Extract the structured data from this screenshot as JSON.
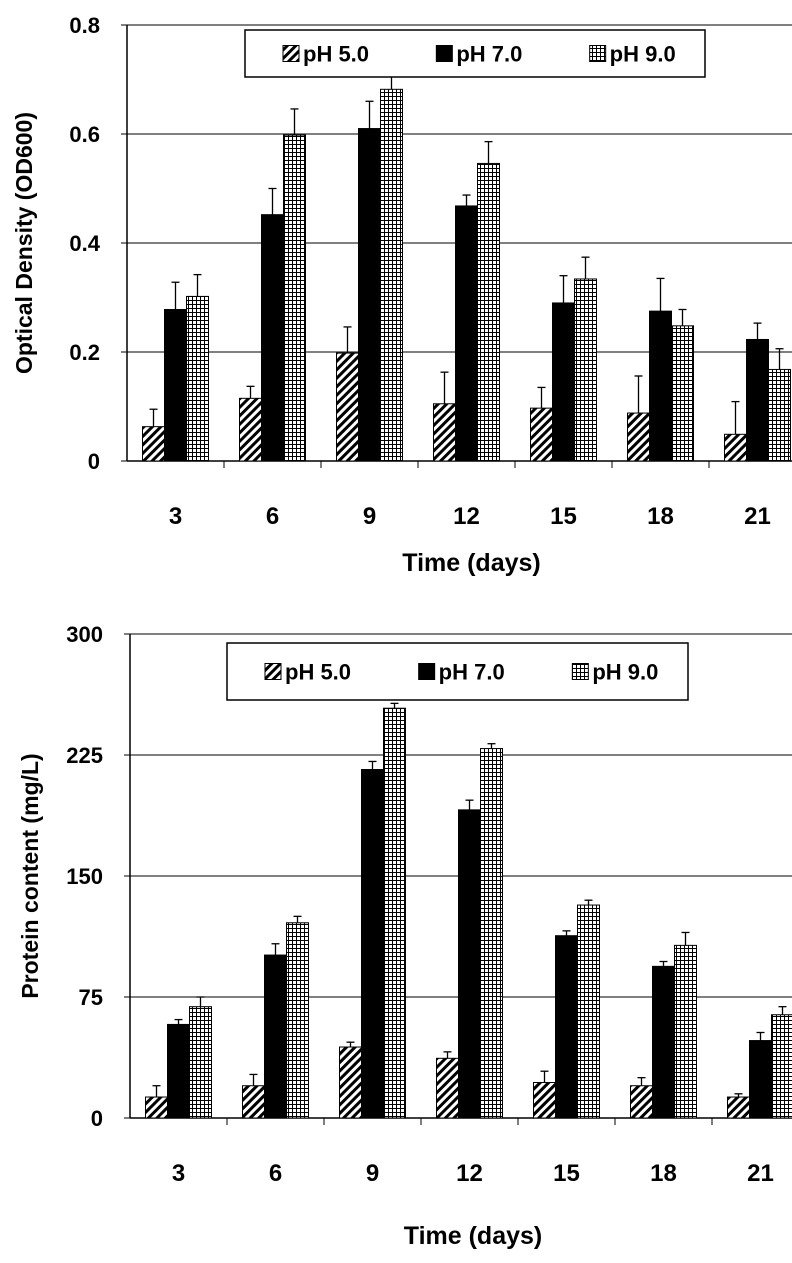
{
  "chart_data": [
    {
      "type": "bar",
      "title": "",
      "xlabel": "Time (days)",
      "ylabel": "Optical Density (OD600)",
      "ylim": [
        0,
        0.8
      ],
      "yticks": [
        "0",
        "0.2",
        "0.4",
        "0.6",
        "0.8"
      ],
      "categories": [
        "3",
        "6",
        "9",
        "12",
        "15",
        "18",
        "21"
      ],
      "grid": true,
      "legend_position": "top",
      "series": [
        {
          "name": "pH 5.0",
          "pattern": "diagonal-hatch",
          "values": [
            0.063,
            0.115,
            0.198,
            0.105,
            0.097,
            0.088,
            0.049
          ],
          "errors": [
            0.032,
            0.022,
            0.048,
            0.058,
            0.038,
            0.068,
            0.06
          ]
        },
        {
          "name": "pH 7.0",
          "pattern": "solid",
          "values": [
            0.278,
            0.452,
            0.61,
            0.468,
            0.29,
            0.275,
            0.223
          ],
          "errors": [
            0.05,
            0.048,
            0.05,
            0.02,
            0.05,
            0.06,
            0.03
          ]
        },
        {
          "name": "pH 9.0",
          "pattern": "grid-hatch",
          "values": [
            0.302,
            0.598,
            0.682,
            0.546,
            0.334,
            0.248,
            0.168
          ],
          "errors": [
            0.04,
            0.048,
            0.035,
            0.04,
            0.04,
            0.03,
            0.038
          ]
        }
      ]
    },
    {
      "type": "bar",
      "title": "",
      "xlabel": "Time (days)",
      "ylabel": "Protein content (mg/L)",
      "ylim": [
        0,
        300
      ],
      "yticks": [
        "0",
        "75",
        "150",
        "225",
        "300"
      ],
      "categories": [
        "3",
        "6",
        "9",
        "12",
        "15",
        "18",
        "21"
      ],
      "grid": true,
      "legend_position": "top",
      "series": [
        {
          "name": "pH 5.0",
          "pattern": "diagonal-hatch",
          "values": [
            13,
            20,
            44,
            37,
            22,
            20,
            13
          ],
          "errors": [
            7,
            7,
            3,
            4,
            7,
            5,
            2
          ]
        },
        {
          "name": "pH 7.0",
          "pattern": "solid",
          "values": [
            58,
            101,
            216,
            191,
            113,
            94,
            48
          ],
          "errors": [
            3,
            7,
            5,
            6,
            3,
            3,
            5
          ]
        },
        {
          "name": "pH 9.0",
          "pattern": "grid-hatch",
          "values": [
            69,
            121,
            254,
            229,
            132,
            107,
            64
          ],
          "errors": [
            6,
            4,
            3,
            3,
            3,
            8,
            5
          ]
        }
      ]
    }
  ]
}
